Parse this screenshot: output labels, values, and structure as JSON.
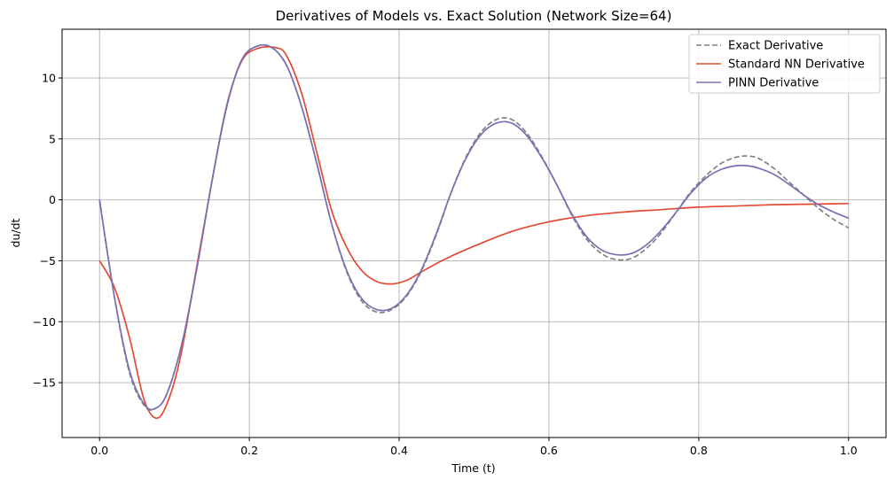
{
  "chart_data": {
    "type": "line",
    "title": "Derivatives of Models vs. Exact Solution (Network Size=64)",
    "xlabel": "Time (t)",
    "ylabel": "du/dt",
    "xlim": [
      -0.05,
      1.05
    ],
    "ylim": [
      -19.5,
      14.0
    ],
    "xticks": [
      0.0,
      0.2,
      0.4,
      0.6,
      0.8,
      1.0
    ],
    "xtick_labels": [
      "0.0",
      "0.2",
      "0.4",
      "0.6",
      "0.8",
      "1.0"
    ],
    "yticks": [
      -15,
      -10,
      -5,
      0,
      5,
      10
    ],
    "ytick_labels": [
      "−15",
      "−10",
      "−5",
      "0",
      "5",
      "10"
    ],
    "grid": true,
    "legend_position": "top-right",
    "series": [
      {
        "name": "Exact Derivative",
        "color": "#808080",
        "style": "dashed",
        "x": [
          0.0,
          0.02,
          0.04,
          0.06,
          0.075,
          0.09,
          0.11,
          0.13,
          0.15,
          0.17,
          0.19,
          0.21,
          0.23,
          0.25,
          0.27,
          0.29,
          0.31,
          0.33,
          0.35,
          0.37,
          0.39,
          0.41,
          0.43,
          0.45,
          0.47,
          0.49,
          0.51,
          0.53,
          0.55,
          0.57,
          0.59,
          0.61,
          0.63,
          0.65,
          0.67,
          0.69,
          0.71,
          0.73,
          0.75,
          0.77,
          0.79,
          0.81,
          0.83,
          0.85,
          0.865,
          0.88,
          0.9,
          0.92,
          0.94,
          0.96,
          0.98,
          1.0
        ],
        "y": [
          0.0,
          -8.0,
          -14.2,
          -16.9,
          -17.1,
          -15.9,
          -11.8,
          -5.6,
          1.5,
          7.7,
          11.5,
          12.6,
          12.5,
          11.0,
          7.6,
          3.0,
          -2.0,
          -5.9,
          -8.3,
          -9.2,
          -9.0,
          -7.9,
          -5.8,
          -2.8,
          0.7,
          3.6,
          5.6,
          6.6,
          6.6,
          5.5,
          3.6,
          1.3,
          -1.2,
          -3.2,
          -4.4,
          -4.9,
          -4.8,
          -4.0,
          -2.7,
          -1.0,
          0.7,
          2.0,
          3.0,
          3.5,
          3.6,
          3.4,
          2.6,
          1.5,
          0.4,
          -0.7,
          -1.6,
          -2.3
        ]
      },
      {
        "name": "Standard NN Derivative",
        "color": "#e24a33",
        "style": "solid",
        "x": [
          0.0,
          0.02,
          0.04,
          0.06,
          0.078,
          0.095,
          0.11,
          0.13,
          0.15,
          0.17,
          0.19,
          0.21,
          0.235,
          0.25,
          0.27,
          0.29,
          0.31,
          0.33,
          0.35,
          0.37,
          0.39,
          0.41,
          0.43,
          0.46,
          0.5,
          0.55,
          0.6,
          0.65,
          0.7,
          0.75,
          0.8,
          0.85,
          0.9,
          0.95,
          1.0
        ],
        "y": [
          -5.0,
          -7.2,
          -11.3,
          -16.5,
          -17.9,
          -15.9,
          -12.3,
          -5.4,
          1.5,
          7.8,
          11.4,
          12.4,
          12.5,
          11.8,
          8.7,
          3.9,
          -0.9,
          -3.9,
          -5.8,
          -6.7,
          -6.9,
          -6.6,
          -5.9,
          -4.9,
          -3.8,
          -2.6,
          -1.8,
          -1.3,
          -1.0,
          -0.8,
          -0.6,
          -0.5,
          -0.4,
          -0.35,
          -0.3
        ]
      },
      {
        "name": "PINN Derivative",
        "color": "#7b6fb3",
        "style": "solid",
        "x": [
          0.0,
          0.02,
          0.04,
          0.06,
          0.075,
          0.09,
          0.11,
          0.13,
          0.15,
          0.17,
          0.19,
          0.21,
          0.23,
          0.25,
          0.27,
          0.29,
          0.31,
          0.33,
          0.35,
          0.37,
          0.39,
          0.41,
          0.43,
          0.45,
          0.47,
          0.49,
          0.51,
          0.53,
          0.55,
          0.57,
          0.59,
          0.61,
          0.63,
          0.65,
          0.67,
          0.69,
          0.71,
          0.73,
          0.75,
          0.77,
          0.79,
          0.81,
          0.83,
          0.85,
          0.865,
          0.88,
          0.9,
          0.92,
          0.94,
          0.96,
          0.98,
          1.0
        ],
        "y": [
          0.0,
          -8.0,
          -14.0,
          -16.8,
          -17.1,
          -15.9,
          -11.8,
          -5.6,
          1.5,
          7.7,
          11.5,
          12.6,
          12.5,
          11.0,
          7.6,
          3.0,
          -2.0,
          -5.8,
          -8.1,
          -9.0,
          -8.9,
          -7.8,
          -5.7,
          -2.7,
          0.7,
          3.5,
          5.4,
          6.3,
          6.3,
          5.3,
          3.5,
          1.3,
          -1.1,
          -3.0,
          -4.1,
          -4.5,
          -4.4,
          -3.7,
          -2.5,
          -1.0,
          0.6,
          1.8,
          2.5,
          2.8,
          2.8,
          2.6,
          2.1,
          1.3,
          0.4,
          -0.4,
          -1.0,
          -1.5
        ]
      }
    ]
  }
}
